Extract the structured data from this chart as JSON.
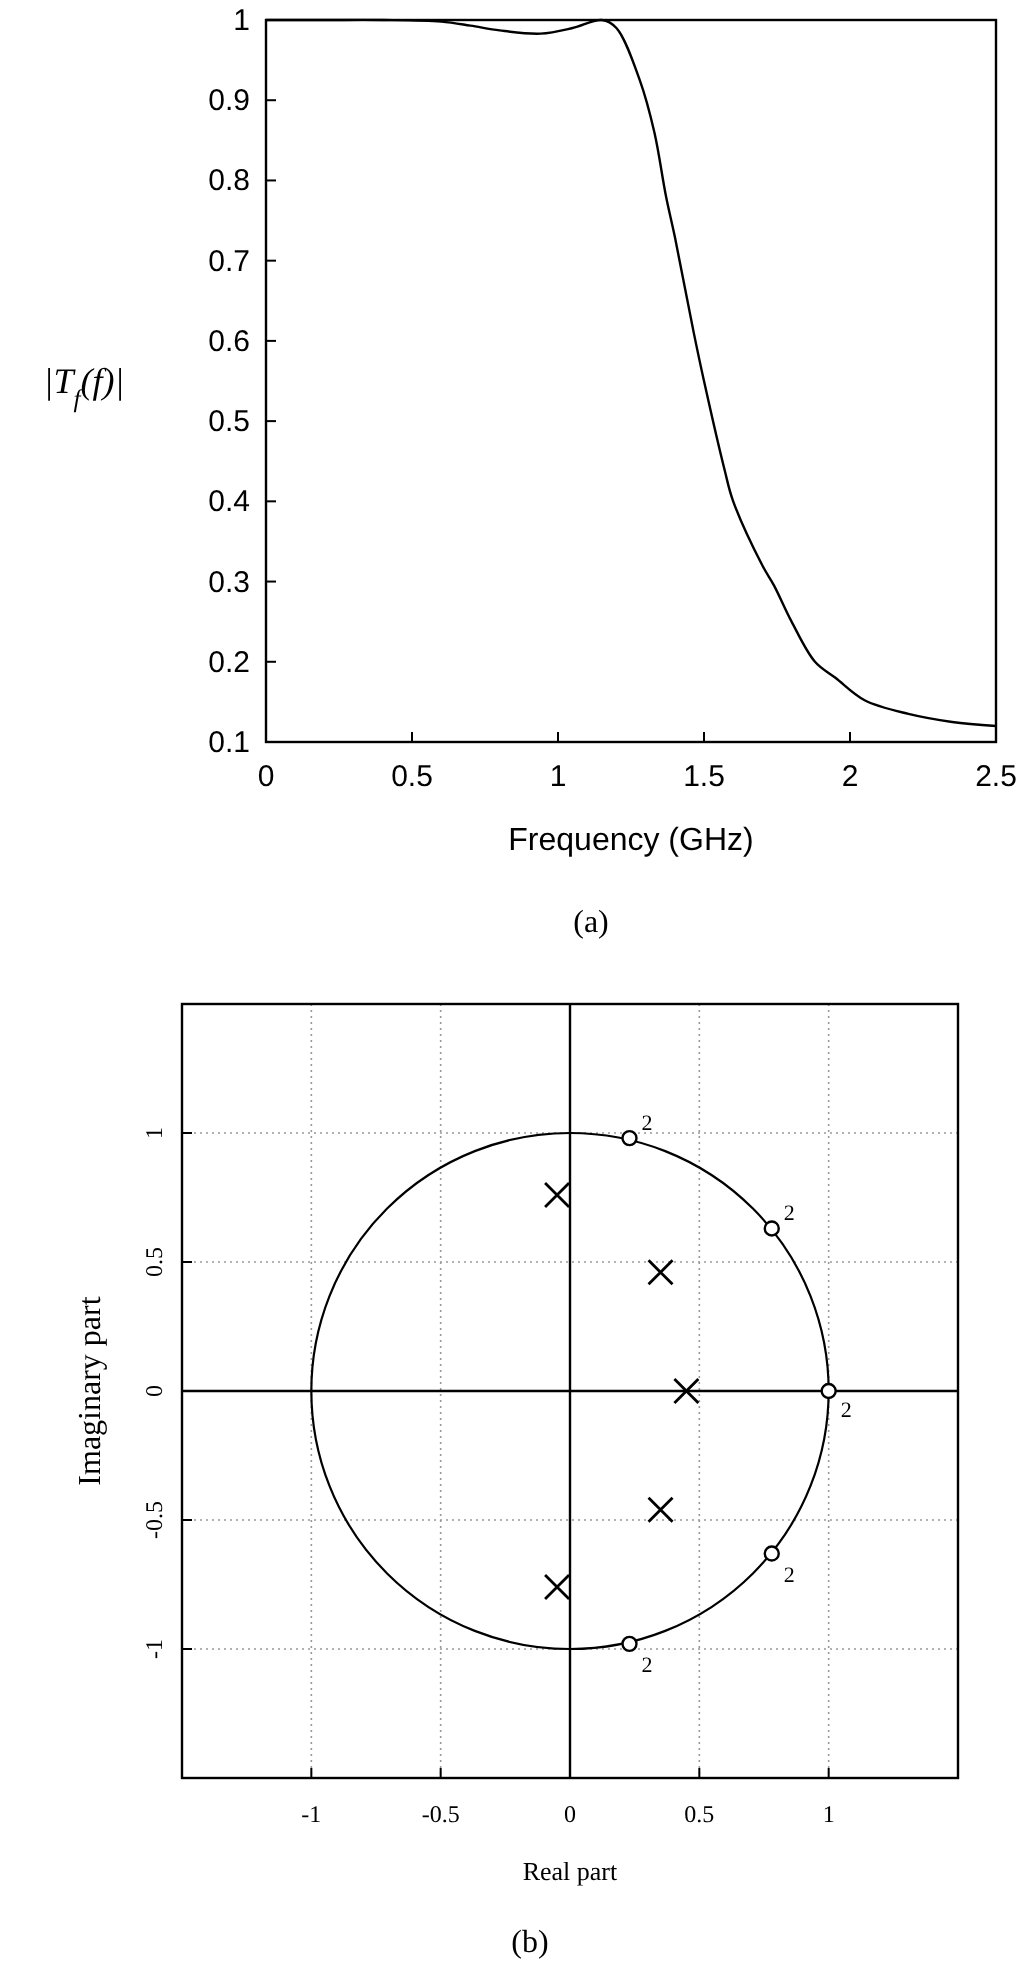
{
  "chart_data": [
    {
      "type": "line",
      "xlabel": "Frequency (GHz)",
      "ylabel": "|T$_{f}$(f)|",
      "annotations": [
        "(a)"
      ],
      "xlim": [
        0,
        2.5
      ],
      "ylim": [
        0.1,
        1
      ],
      "xticks": [
        0,
        0.5,
        1,
        1.5,
        2,
        2.5
      ],
      "yticks": [
        0.1,
        0.2,
        0.3,
        0.4,
        0.5,
        0.6,
        0.7,
        0.8,
        0.9,
        1
      ],
      "grid": false,
      "series": [
        {
          "color": "#000000",
          "x": [
            0,
            0.2,
            0.4,
            0.6,
            0.7,
            0.8,
            0.94,
            1.05,
            1.15,
            1.2,
            1.28,
            1.33,
            1.37,
            1.4,
            1.465,
            1.5,
            1.57,
            1.6,
            1.7,
            1.74,
            1.8,
            1.88,
            1.95,
            2.05,
            2.2,
            2.35,
            2.5
          ],
          "values": [
            1,
            1,
            1,
            0.998,
            0.993,
            0.987,
            0.983,
            0.99,
            1,
            0.99,
            0.925,
            0.86,
            0.78,
            0.73,
            0.61,
            0.55,
            0.44,
            0.4,
            0.32,
            0.295,
            0.25,
            0.2,
            0.18,
            0.152,
            0.135,
            0.125,
            0.12
          ]
        }
      ]
    },
    {
      "type": "scatter",
      "xlabel": "Real part",
      "ylabel": "Imaginary part",
      "xlim": [
        -1.5,
        1.5
      ],
      "ylim": [
        -1.5,
        1.5
      ],
      "xticks": [
        -1,
        -0.5,
        0,
        0.5,
        1
      ],
      "yticks": [
        -1,
        -0.5,
        0,
        0.5,
        1
      ],
      "grid": true,
      "annotations": [
        {
          "text": "2",
          "x": 0.23,
          "y": 0.98
        },
        {
          "text": "2",
          "x": 0.78,
          "y": 0.63
        },
        {
          "text": "2",
          "x": 1,
          "y": 0
        },
        {
          "text": "2",
          "x": 0.78,
          "y": -0.63
        },
        {
          "text": "2",
          "x": 0.23,
          "y": -0.98
        },
        "(b)"
      ],
      "series": [
        {
          "marker": "circle",
          "color": "#000000",
          "x": [
            0.23,
            0.78,
            1,
            0.78,
            0.23
          ],
          "values": [
            0.98,
            0.63,
            0,
            -0.63,
            -0.98
          ]
        },
        {
          "marker": "cross",
          "color": "#000000",
          "x": [
            -0.05,
            0.35,
            0.45,
            0.35,
            -0.05
          ],
          "values": [
            0.76,
            0.46,
            0,
            -0.46,
            -0.76
          ]
        }
      ]
    }
  ]
}
